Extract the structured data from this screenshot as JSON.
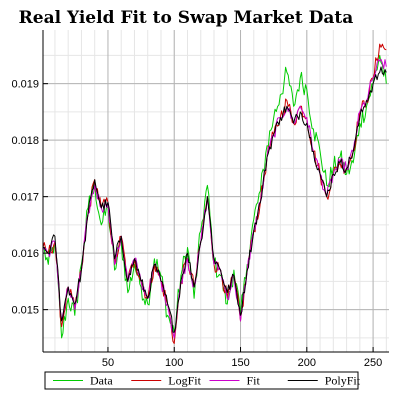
{
  "chart_data": {
    "type": "line",
    "title": "Real Yield Fit to Swap Market Data",
    "xlabel": "",
    "ylabel": "",
    "xlim": [
      1,
      262
    ],
    "ylim": [
      0.01425,
      0.01995
    ],
    "x_ticks": [
      50,
      100,
      150,
      200,
      250
    ],
    "x_tick_labels": [
      "50",
      "100",
      "150",
      "200",
      "250"
    ],
    "y_ticks": [
      0.015,
      0.016,
      0.017,
      0.018,
      0.019
    ],
    "y_tick_labels": [
      "0.015",
      "0.016",
      "0.017",
      "0.018",
      "0.019"
    ],
    "grid": true,
    "legend_position": "bottom",
    "x": [
      1,
      5,
      10,
      15,
      20,
      25,
      30,
      35,
      40,
      45,
      50,
      55,
      60,
      65,
      70,
      75,
      80,
      85,
      90,
      95,
      100,
      105,
      110,
      115,
      120,
      125,
      130,
      135,
      140,
      145,
      150,
      155,
      160,
      165,
      170,
      175,
      180,
      185,
      190,
      195,
      200,
      205,
      210,
      215,
      220,
      225,
      230,
      235,
      240,
      245,
      250,
      255,
      260
    ],
    "series": [
      {
        "name": "Data",
        "color": "#00cc00",
        "values": [
          0.0161,
          0.0158,
          0.0162,
          0.0145,
          0.0152,
          0.0149,
          0.0158,
          0.0168,
          0.0172,
          0.0165,
          0.0168,
          0.0157,
          0.0162,
          0.0153,
          0.0158,
          0.0154,
          0.0151,
          0.0159,
          0.0156,
          0.0149,
          0.0146,
          0.0156,
          0.0161,
          0.0152,
          0.0164,
          0.0172,
          0.0158,
          0.0156,
          0.0151,
          0.0157,
          0.0149,
          0.0158,
          0.0166,
          0.0171,
          0.0179,
          0.0184,
          0.0188,
          0.0192,
          0.0186,
          0.0191,
          0.0189,
          0.0182,
          0.0178,
          0.0172,
          0.0175,
          0.0177,
          0.0174,
          0.0176,
          0.0183,
          0.0186,
          0.019,
          0.0195,
          0.019
        ]
      },
      {
        "name": "LogFit",
        "color": "#cc0000",
        "values": [
          0.0161,
          0.016,
          0.0162,
          0.0147,
          0.0154,
          0.015,
          0.0157,
          0.0167,
          0.0173,
          0.0168,
          0.0169,
          0.0158,
          0.0163,
          0.0155,
          0.0159,
          0.0155,
          0.0152,
          0.0158,
          0.0155,
          0.0151,
          0.0144,
          0.0155,
          0.0159,
          0.0154,
          0.0162,
          0.017,
          0.0158,
          0.0157,
          0.0152,
          0.0156,
          0.0148,
          0.0157,
          0.0164,
          0.0169,
          0.0177,
          0.0181,
          0.0184,
          0.0187,
          0.0183,
          0.0186,
          0.0184,
          0.0178,
          0.0174,
          0.017,
          0.0174,
          0.0176,
          0.0175,
          0.0178,
          0.0185,
          0.0187,
          0.0191,
          0.0197,
          0.0196
        ]
      },
      {
        "name": "Fit",
        "color": "#cc00cc",
        "values": [
          0.0161,
          0.016,
          0.0162,
          0.0148,
          0.0154,
          0.015,
          0.0157,
          0.0167,
          0.0172,
          0.0168,
          0.0169,
          0.0158,
          0.0163,
          0.0155,
          0.0159,
          0.0155,
          0.0152,
          0.0158,
          0.0155,
          0.0151,
          0.0145,
          0.0155,
          0.0159,
          0.0154,
          0.0162,
          0.017,
          0.0158,
          0.0157,
          0.0152,
          0.0156,
          0.0148,
          0.0157,
          0.0164,
          0.0169,
          0.0177,
          0.0181,
          0.0184,
          0.0186,
          0.0183,
          0.0186,
          0.0184,
          0.0178,
          0.0174,
          0.017,
          0.0174,
          0.0176,
          0.0175,
          0.0178,
          0.0185,
          0.0187,
          0.0191,
          0.0194,
          0.0193
        ]
      },
      {
        "name": "PolyFit",
        "color": "#000000",
        "values": [
          0.0161,
          0.016,
          0.0163,
          0.0148,
          0.0154,
          0.0151,
          0.0157,
          0.0167,
          0.0173,
          0.0168,
          0.0169,
          0.0159,
          0.0163,
          0.0155,
          0.0159,
          0.0155,
          0.0152,
          0.0158,
          0.0155,
          0.0151,
          0.0146,
          0.0155,
          0.016,
          0.0154,
          0.0162,
          0.017,
          0.0159,
          0.0157,
          0.0153,
          0.0156,
          0.0149,
          0.0157,
          0.0164,
          0.0169,
          0.0177,
          0.0181,
          0.0184,
          0.0186,
          0.0183,
          0.0185,
          0.0183,
          0.0178,
          0.0174,
          0.017,
          0.0174,
          0.0176,
          0.0175,
          0.0178,
          0.0184,
          0.0187,
          0.019,
          0.0192,
          0.0192
        ]
      }
    ]
  }
}
